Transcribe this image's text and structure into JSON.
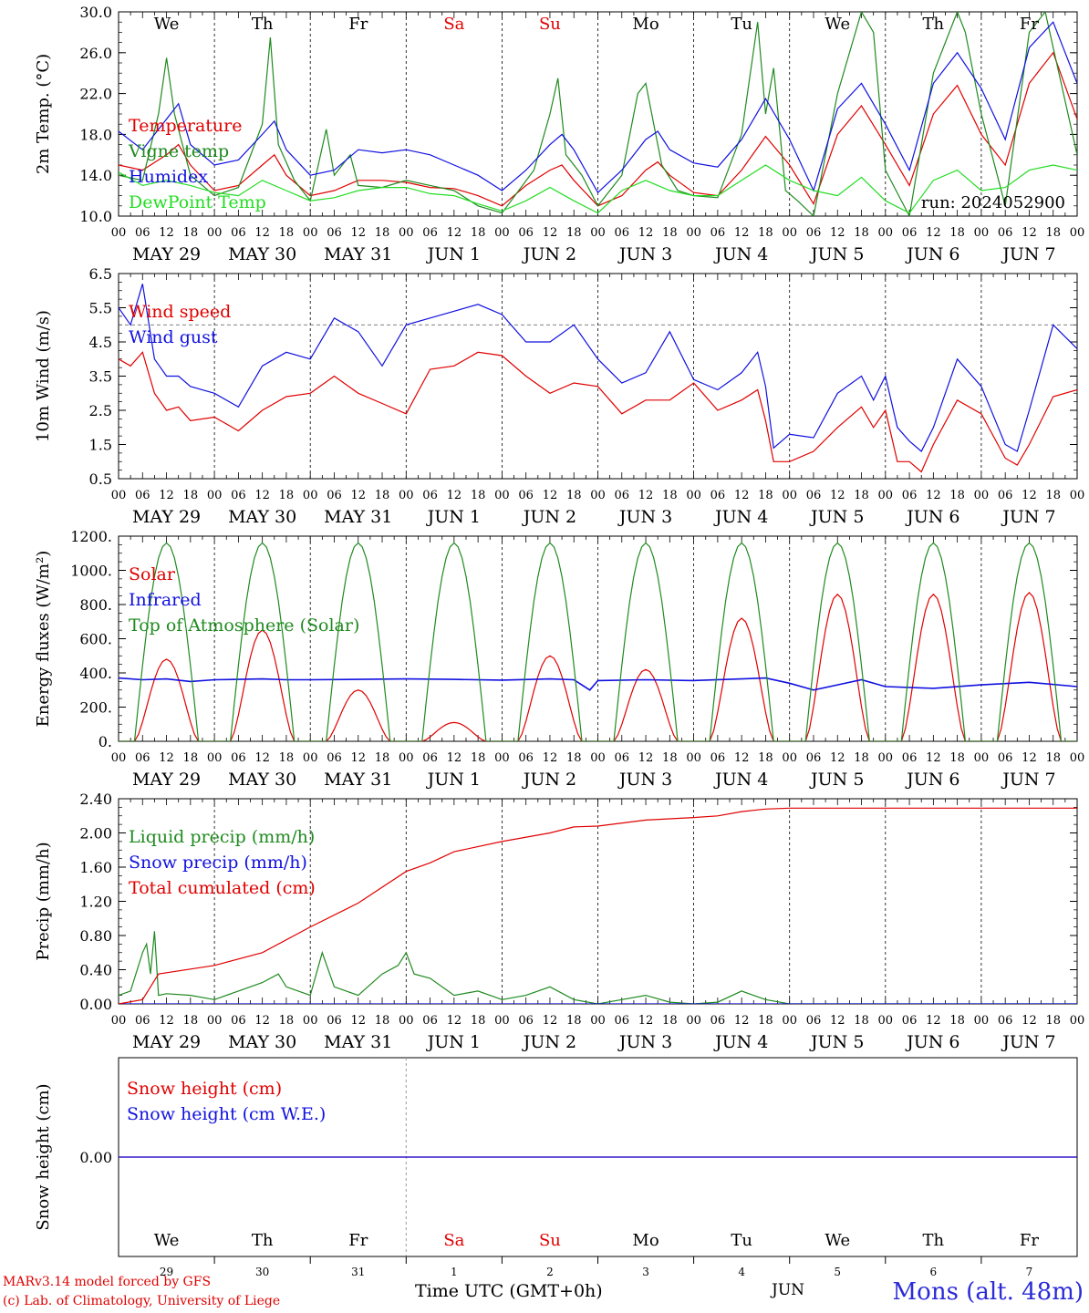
{
  "colors": {
    "red": "#e00000",
    "green": "#1f8a1f",
    "blue": "#1010e0",
    "lime": "#22dd22",
    "purple": "#7a2a9a"
  },
  "day_names": [
    {
      "label": "We",
      "color": "#000000"
    },
    {
      "label": "Th",
      "color": "#000000"
    },
    {
      "label": "Fr",
      "color": "#000000"
    },
    {
      "label": "Sa",
      "color": "#e00000"
    },
    {
      "label": "Su",
      "color": "#e00000"
    },
    {
      "label": "Mo",
      "color": "#000000"
    },
    {
      "label": "Tu",
      "color": "#000000"
    },
    {
      "label": "We",
      "color": "#000000"
    },
    {
      "label": "Th",
      "color": "#000000"
    },
    {
      "label": "Fr",
      "color": "#000000"
    }
  ],
  "date_labels": [
    "MAY 29",
    "MAY 30",
    "MAY 31",
    "JUN  1",
    "JUN  2",
    "JUN  3",
    "JUN  4",
    "JUN  5",
    "JUN  6",
    "JUN  7"
  ],
  "hour_labels": [
    "00",
    "06",
    "12",
    "18"
  ],
  "day_numbers": [
    "29",
    "30",
    "31",
    "1",
    "2",
    "3",
    "4",
    "5",
    "6",
    "7"
  ],
  "footer": {
    "credit_line1": "MARv3.14 model forced by GFS",
    "credit_line2": "(c) Lab. of Climatology, University of Liege",
    "time_label": "Time UTC (GMT+0h)",
    "month_label": "JUN",
    "location": "Mons (alt. 48m)"
  },
  "chart_data": [
    {
      "type": "line",
      "ylabel": "2m Temp. (°C)",
      "ylim": [
        10,
        30
      ],
      "yticks": [
        "10.0",
        "14.0",
        "18.0",
        "22.0",
        "26.0",
        "30.0"
      ],
      "annotation": "run: 2024052900",
      "x_unit": "hours since May 29 00 UTC",
      "x_range": [
        0,
        240
      ],
      "series": [
        {
          "name": "Temperature",
          "color": "#e00000",
          "x": [
            0,
            6,
            12,
            15,
            18,
            24,
            30,
            36,
            39,
            42,
            48,
            54,
            60,
            66,
            72,
            78,
            84,
            90,
            96,
            102,
            108,
            111,
            114,
            120,
            126,
            132,
            135,
            138,
            144,
            150,
            156,
            162,
            168,
            174,
            180,
            186,
            192,
            198,
            204,
            210,
            216,
            222,
            228,
            234,
            240
          ],
          "y": [
            15.0,
            14.5,
            16.0,
            17.0,
            15.0,
            12.5,
            13.0,
            15.0,
            16.0,
            14.0,
            12.0,
            12.5,
            13.5,
            13.5,
            13.3,
            12.8,
            12.7,
            12.0,
            11.0,
            13.0,
            14.5,
            15.0,
            13.5,
            11.0,
            12.0,
            14.5,
            15.3,
            14.0,
            12.3,
            12.0,
            14.5,
            17.8,
            15.0,
            11.2,
            18.0,
            20.8,
            17.0,
            13.0,
            20.0,
            22.8,
            18.0,
            15.0,
            23.0,
            26.0,
            19.5
          ]
        },
        {
          "name": "Vigne temp",
          "color": "#1f8a1f",
          "x": [
            0,
            6,
            10,
            12,
            14,
            18,
            24,
            30,
            36,
            38,
            40,
            44,
            48,
            52,
            54,
            58,
            60,
            66,
            72,
            78,
            84,
            90,
            96,
            104,
            108,
            110,
            112,
            116,
            120,
            126,
            130,
            132,
            136,
            140,
            144,
            150,
            156,
            160,
            162,
            164,
            167,
            170,
            174,
            180,
            186,
            189,
            192,
            198,
            204,
            210,
            212,
            216,
            222,
            228,
            232,
            240
          ],
          "y": [
            14.0,
            13.5,
            20.0,
            25.5,
            20.0,
            14.0,
            12.0,
            12.8,
            19.0,
            27.5,
            17.0,
            13.5,
            11.5,
            18.5,
            14.0,
            16.0,
            13.0,
            12.8,
            13.5,
            13.0,
            12.5,
            11.0,
            10.3,
            14.5,
            20.0,
            23.5,
            16.0,
            14.0,
            11.0,
            14.0,
            22.0,
            23.0,
            15.0,
            12.5,
            12.0,
            11.8,
            18.0,
            29.0,
            20.0,
            24.5,
            12.5,
            11.5,
            10.0,
            22.0,
            30.0,
            28.0,
            14.5,
            10.0,
            24.0,
            30.0,
            28.0,
            20.0,
            11.0,
            28.0,
            30.0,
            16.0
          ]
        },
        {
          "name": "Humidex",
          "color": "#1010e0",
          "x": [
            0,
            6,
            12,
            15,
            18,
            24,
            30,
            36,
            39,
            42,
            48,
            54,
            60,
            66,
            72,
            78,
            84,
            90,
            96,
            102,
            108,
            111,
            114,
            120,
            126,
            132,
            135,
            138,
            144,
            150,
            156,
            162,
            168,
            174,
            180,
            186,
            192,
            198,
            204,
            210,
            216,
            222,
            228,
            234,
            240
          ],
          "y": [
            18.3,
            16.5,
            19.5,
            21.0,
            17.0,
            15.0,
            15.5,
            18.0,
            19.3,
            16.5,
            14.0,
            14.5,
            16.5,
            16.2,
            16.5,
            16.0,
            15.0,
            14.0,
            12.5,
            14.5,
            17.0,
            18.0,
            16.5,
            12.3,
            14.5,
            17.5,
            18.3,
            16.5,
            15.2,
            14.8,
            17.5,
            21.5,
            17.5,
            12.5,
            20.5,
            23.0,
            19.0,
            14.5,
            23.0,
            26.0,
            22.5,
            17.5,
            26.5,
            29.0,
            23.0
          ]
        },
        {
          "name": "DewPoint Temp",
          "color": "#22dd22",
          "x": [
            0,
            6,
            12,
            18,
            24,
            30,
            36,
            42,
            48,
            54,
            60,
            66,
            72,
            78,
            84,
            90,
            96,
            102,
            108,
            114,
            120,
            126,
            132,
            138,
            144,
            150,
            156,
            162,
            168,
            174,
            180,
            186,
            192,
            198,
            204,
            210,
            216,
            222,
            228,
            234,
            240
          ],
          "y": [
            14.3,
            13.0,
            13.5,
            13.0,
            12.3,
            12.0,
            13.5,
            12.5,
            11.5,
            11.8,
            12.5,
            12.8,
            12.8,
            12.2,
            12.0,
            11.2,
            10.5,
            11.5,
            12.8,
            11.5,
            10.3,
            12.5,
            13.5,
            12.5,
            12.0,
            12.0,
            13.5,
            15.0,
            13.5,
            12.5,
            12.0,
            13.8,
            11.5,
            10.3,
            13.5,
            14.5,
            12.5,
            12.8,
            14.5,
            15.0,
            14.5
          ]
        }
      ]
    },
    {
      "type": "line",
      "ylabel": "10m Wind (m/s)",
      "ylim": [
        0.5,
        6.5
      ],
      "yticks": [
        "0.5",
        "1.5",
        "2.5",
        "3.5",
        "4.5",
        "5.5",
        "6.5"
      ],
      "ref_line": 5.0,
      "x_unit": "hours since May 29 00 UTC",
      "x_range": [
        0,
        240
      ],
      "series": [
        {
          "name": "Wind speed",
          "color": "#e00000",
          "x": [
            0,
            3,
            6,
            9,
            12,
            15,
            18,
            24,
            30,
            36,
            42,
            48,
            54,
            60,
            66,
            72,
            78,
            84,
            90,
            96,
            102,
            108,
            114,
            120,
            126,
            132,
            138,
            144,
            150,
            156,
            160,
            162,
            164,
            168,
            174,
            180,
            186,
            189,
            192,
            195,
            198,
            201,
            204,
            210,
            216,
            222,
            225,
            228,
            234,
            240
          ],
          "y": [
            4.0,
            3.8,
            4.2,
            3.0,
            2.5,
            2.6,
            2.2,
            2.3,
            1.9,
            2.5,
            2.9,
            3.0,
            3.5,
            3.0,
            2.7,
            2.4,
            3.7,
            3.8,
            4.2,
            4.1,
            3.5,
            3.0,
            3.3,
            3.2,
            2.4,
            2.8,
            2.8,
            3.3,
            2.5,
            2.8,
            3.1,
            2.2,
            1.0,
            1.0,
            1.3,
            2.0,
            2.6,
            2.0,
            2.5,
            1.0,
            1.0,
            0.7,
            1.5,
            2.8,
            2.4,
            1.1,
            0.9,
            1.5,
            2.9,
            3.1
          ]
        },
        {
          "name": "Wind gust",
          "color": "#1010e0",
          "x": [
            0,
            3,
            6,
            9,
            12,
            15,
            18,
            24,
            30,
            36,
            42,
            48,
            54,
            60,
            66,
            72,
            78,
            84,
            90,
            96,
            102,
            108,
            114,
            120,
            126,
            132,
            138,
            144,
            150,
            156,
            160,
            162,
            164,
            168,
            174,
            180,
            186,
            189,
            192,
            195,
            198,
            201,
            204,
            210,
            216,
            222,
            225,
            228,
            234,
            240
          ],
          "y": [
            5.5,
            5.0,
            6.2,
            4.0,
            3.5,
            3.5,
            3.2,
            3.0,
            2.6,
            3.8,
            4.2,
            4.0,
            5.2,
            4.8,
            3.8,
            5.0,
            5.2,
            5.4,
            5.6,
            5.3,
            4.5,
            4.5,
            5.0,
            4.0,
            3.3,
            3.6,
            4.8,
            3.4,
            3.1,
            3.6,
            4.2,
            3.2,
            1.4,
            1.8,
            1.7,
            3.0,
            3.5,
            2.8,
            3.5,
            2.0,
            1.6,
            1.3,
            2.0,
            4.0,
            3.2,
            1.5,
            1.3,
            2.5,
            5.0,
            4.3
          ]
        }
      ]
    },
    {
      "type": "line",
      "ylabel": "Energy fluxes (W/m²)",
      "ylim": [
        0,
        1200
      ],
      "yticks": [
        "0.",
        "200.",
        "400.",
        "600.",
        "800.",
        "1000.",
        "1200."
      ],
      "x_unit": "hours since May 29 00 UTC",
      "x_range": [
        0,
        240
      ],
      "series": [
        {
          "name": "Solar",
          "color": "#e00000",
          "peaks": [
            480,
            650,
            300,
            110,
            500,
            420,
            720,
            860,
            860,
            870
          ]
        },
        {
          "name": "Infrared",
          "color": "#1010e0",
          "x": [
            0,
            6,
            12,
            18,
            24,
            30,
            36,
            42,
            48,
            60,
            72,
            84,
            96,
            108,
            114,
            118,
            120,
            132,
            144,
            156,
            162,
            168,
            174,
            180,
            186,
            192,
            204,
            216,
            228,
            240
          ],
          "y": [
            370,
            360,
            365,
            350,
            360,
            362,
            365,
            360,
            360,
            362,
            365,
            362,
            358,
            365,
            360,
            300,
            355,
            360,
            355,
            365,
            370,
            340,
            300,
            330,
            360,
            320,
            310,
            330,
            345,
            320
          ]
        },
        {
          "name": "Top of Atmosphere (Solar)",
          "color": "#1f8a1f",
          "peak": 1160
        }
      ]
    },
    {
      "type": "line",
      "ylabel": "Precip (mm/h)",
      "ylim": [
        0,
        2.4
      ],
      "yticks": [
        "0.00",
        "0.40",
        "0.80",
        "1.20",
        "1.60",
        "2.00",
        "2.40"
      ],
      "x_unit": "hours since May 29 00 UTC",
      "x_range": [
        0,
        240
      ],
      "series": [
        {
          "name": "Liquid precip (mm/h)",
          "color": "#1f8a1f",
          "x": [
            0,
            3,
            6,
            7,
            8,
            9,
            10,
            12,
            18,
            24,
            30,
            36,
            40,
            42,
            48,
            51,
            54,
            60,
            66,
            70,
            72,
            74,
            78,
            84,
            90,
            96,
            102,
            108,
            114,
            120,
            126,
            132,
            138,
            144,
            150,
            156,
            162,
            168,
            174,
            180,
            192,
            204,
            216,
            228,
            240
          ],
          "y": [
            0.1,
            0.15,
            0.6,
            0.7,
            0.35,
            0.85,
            0.1,
            0.12,
            0.1,
            0.05,
            0.15,
            0.25,
            0.35,
            0.2,
            0.1,
            0.6,
            0.2,
            0.1,
            0.35,
            0.45,
            0.6,
            0.35,
            0.3,
            0.1,
            0.15,
            0.05,
            0.1,
            0.2,
            0.05,
            0.0,
            0.05,
            0.1,
            0.02,
            0.0,
            0.02,
            0.15,
            0.05,
            0.0,
            0.0,
            0.0,
            0.0,
            0.0,
            0.0,
            0.0,
            0.0
          ]
        },
        {
          "name": "Snow precip (mm/h)",
          "color": "#1010e0",
          "x": [
            0,
            240
          ],
          "y": [
            0,
            0
          ]
        },
        {
          "name": "Total cumulated (cm)",
          "color": "#e00000",
          "x": [
            0,
            6,
            10,
            24,
            36,
            48,
            60,
            72,
            78,
            84,
            96,
            108,
            114,
            120,
            132,
            144,
            150,
            156,
            162,
            168,
            174,
            180,
            192,
            204,
            216,
            228,
            240
          ],
          "y": [
            0.0,
            0.05,
            0.35,
            0.45,
            0.6,
            0.9,
            1.18,
            1.55,
            1.65,
            1.78,
            1.9,
            2.0,
            2.07,
            2.08,
            2.15,
            2.18,
            2.2,
            2.25,
            2.28,
            2.29,
            2.29,
            2.29,
            2.29,
            2.29,
            2.29,
            2.29,
            2.29
          ]
        }
      ]
    },
    {
      "type": "line",
      "ylabel": "Snow height (cm)",
      "ylim": [
        -1,
        1
      ],
      "yticks": [
        "0.00"
      ],
      "x_unit": "hours since May 29 00 UTC",
      "x_range": [
        0,
        240
      ],
      "series": [
        {
          "name": "Snow height (cm)",
          "color": "#e00000",
          "x": [
            0,
            240
          ],
          "y": [
            0,
            0
          ]
        },
        {
          "name": "Snow height (cm W.E.)",
          "color": "#1010e0",
          "x": [
            0,
            240
          ],
          "y": [
            0,
            0
          ]
        }
      ]
    }
  ]
}
